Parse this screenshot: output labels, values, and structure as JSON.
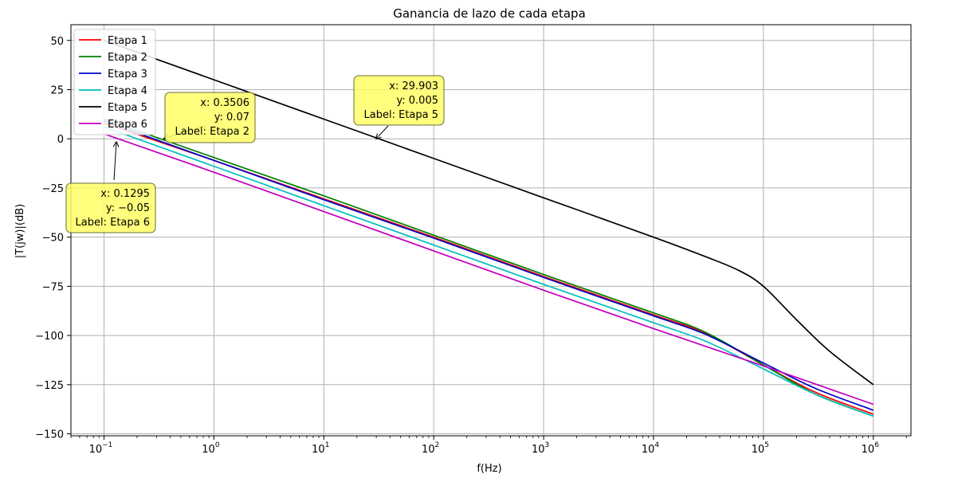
{
  "chart_data": {
    "type": "line",
    "title": "Ganancia de lazo de cada etapa",
    "xlabel": "f(Hz)",
    "ylabel": "|T(jw)|(dB)",
    "xscale": "log",
    "xlim": [
      0.05,
      2200000
    ],
    "ylim": [
      -151,
      58
    ],
    "grid": true,
    "legend_position": "top-left",
    "xticks": [
      {
        "value": 0.1,
        "base": "10",
        "exp": "−1"
      },
      {
        "value": 1,
        "base": "10",
        "exp": "0"
      },
      {
        "value": 10,
        "base": "10",
        "exp": "1"
      },
      {
        "value": 100,
        "base": "10",
        "exp": "2"
      },
      {
        "value": 1000,
        "base": "10",
        "exp": "3"
      },
      {
        "value": 10000,
        "base": "10",
        "exp": "4"
      },
      {
        "value": 100000,
        "base": "10",
        "exp": "5"
      },
      {
        "value": 1000000,
        "base": "10",
        "exp": "6"
      }
    ],
    "yticks": [
      {
        "value": 50,
        "label": "50"
      },
      {
        "value": 25,
        "label": "25"
      },
      {
        "value": 0,
        "label": "0"
      },
      {
        "value": -25,
        "label": "−25"
      },
      {
        "value": -50,
        "label": "−50"
      },
      {
        "value": -75,
        "label": "−75"
      },
      {
        "value": -100,
        "label": "−100"
      },
      {
        "value": -125,
        "label": "−125"
      },
      {
        "value": -150,
        "label": "−150"
      }
    ],
    "series": [
      {
        "name": "Etapa 1",
        "color": "#ff0000",
        "x": [
          0.1,
          1,
          10,
          100,
          1000,
          10000,
          30000,
          100000,
          300000,
          1000000
        ],
        "y": [
          8,
          -11,
          -30.5,
          -50,
          -70,
          -89.5,
          -99,
          -115,
          -129,
          -140
        ]
      },
      {
        "name": "Etapa 2",
        "color": "#008000",
        "x": [
          0.1,
          1,
          10,
          100,
          1000,
          10000,
          30000,
          100000,
          300000,
          1000000
        ],
        "y": [
          10,
          -9.5,
          -29,
          -49,
          -69,
          -88.5,
          -98.5,
          -115,
          -130,
          -141
        ]
      },
      {
        "name": "Etapa 3",
        "color": "#0000cc",
        "x": [
          0.1,
          1,
          10,
          100,
          1000,
          10000,
          30000,
          100000,
          300000,
          1000000
        ],
        "y": [
          9,
          -11,
          -31,
          -50.5,
          -70.5,
          -90,
          -99.5,
          -114,
          -127,
          -138
        ]
      },
      {
        "name": "Etapa 4",
        "color": "#00bfbf",
        "x": [
          0.1,
          1,
          10,
          100,
          1000,
          10000,
          30000,
          100000,
          300000,
          1000000
        ],
        "y": [
          6,
          -14,
          -34,
          -54,
          -74,
          -93.5,
          -103,
          -117,
          -130,
          -141
        ]
      },
      {
        "name": "Etapa 5",
        "color": "#000000",
        "x": [
          0.1,
          1,
          10,
          100,
          1000,
          10000,
          30000,
          60000,
          100000,
          200000,
          400000,
          1000000
        ],
        "y": [
          50,
          30,
          10,
          -10,
          -30,
          -50,
          -60,
          -67,
          -75,
          -92,
          -108,
          -125
        ]
      },
      {
        "name": "Etapa 6",
        "color": "#bf00bf",
        "x": [
          0.1,
          1,
          10,
          100,
          1000,
          10000,
          100000,
          1000000
        ],
        "y": [
          2.5,
          -17,
          -37,
          -57,
          -77,
          -96.5,
          -115.5,
          -135
        ]
      }
    ],
    "annotations": [
      {
        "series": "Etapa 2",
        "x": 0.3506,
        "y": 0.07,
        "lines": [
          "x: 0.3506",
          "y: 0.07",
          "Label: Etapa 2"
        ]
      },
      {
        "series": "Etapa 5",
        "x": 29.903,
        "y": 0.005,
        "lines": [
          "x: 29.903",
          "y: 0.005",
          "Label: Etapa 5"
        ]
      },
      {
        "series": "Etapa 6",
        "x": 0.1295,
        "y": -0.05,
        "lines": [
          "x: 0.1295",
          "y: −0.05",
          "Label: Etapa 6"
        ]
      }
    ]
  }
}
